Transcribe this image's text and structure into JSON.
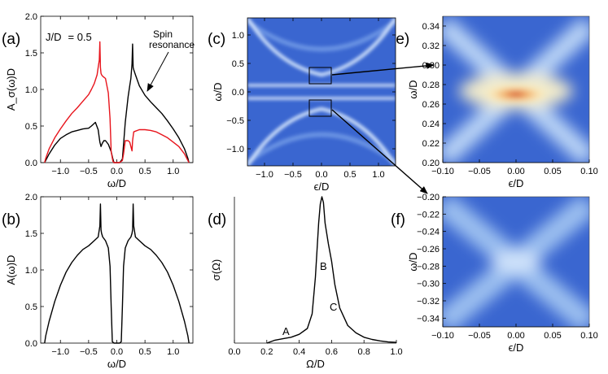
{
  "panel_labels": {
    "a": "(a)",
    "b": "(b)",
    "c": "(c)",
    "d": "(d)",
    "e": "(e)",
    "f": "(f)"
  },
  "colors": {
    "black": "#000000",
    "red": "#e8141c",
    "map_bg": "#3a66d0",
    "map_ridge": "#eaf4ff",
    "map_hot": "#c8301c"
  },
  "chart_data": [
    {
      "id": "a",
      "type": "line",
      "xlabel": "ω/D",
      "ylabel": "A_σ(ω)D",
      "xlim": [
        -1.35,
        1.35
      ],
      "ylim": [
        0,
        2.0
      ],
      "xticks": [
        -1.0,
        -0.5,
        0.0,
        0.5,
        1.0
      ],
      "xtick_labels": [
        "−1.0",
        "−0.5",
        "0.0",
        "0.5",
        "1.0"
      ],
      "yticks": [
        0.0,
        0.5,
        1.0,
        1.5,
        2.0
      ],
      "ytick_labels": [
        "0.0",
        "0.5",
        "1.0",
        "1.5",
        "2.0"
      ],
      "annotations": {
        "param": "J/D",
        "param_value": "= 0.5",
        "note_line1": "Spin",
        "note_line2": "resonance"
      },
      "series": [
        {
          "color": "#000000",
          "x": [
            -1.28,
            -1.26,
            -1.2,
            -1.1,
            -1.0,
            -0.9,
            -0.8,
            -0.7,
            -0.6,
            -0.5,
            -0.45,
            -0.38,
            -0.33,
            -0.3,
            -0.28,
            -0.26,
            -0.23,
            -0.2,
            -0.15,
            -0.1,
            -0.07,
            -0.05,
            -0.02,
            0.0,
            0.02,
            0.05,
            0.1,
            0.15,
            0.2,
            0.23,
            0.25,
            0.27,
            0.28,
            0.29,
            0.3,
            0.33,
            0.4,
            0.5,
            0.6,
            0.7,
            0.8,
            0.9,
            1.0,
            1.1,
            1.2,
            1.26,
            1.28
          ],
          "y": [
            0.0,
            0.03,
            0.12,
            0.24,
            0.33,
            0.38,
            0.42,
            0.44,
            0.46,
            0.47,
            0.5,
            0.55,
            0.45,
            0.28,
            0.22,
            0.26,
            0.3,
            0.3,
            0.25,
            0.15,
            0.05,
            0.0,
            0.0,
            0.0,
            0.0,
            0.0,
            0.05,
            0.55,
            0.9,
            1.05,
            1.15,
            1.35,
            1.62,
            1.3,
            1.27,
            1.2,
            1.05,
            0.92,
            0.83,
            0.75,
            0.67,
            0.57,
            0.46,
            0.34,
            0.19,
            0.06,
            0.0
          ]
        },
        {
          "color": "#e8141c",
          "x": [
            -1.28,
            -1.26,
            -1.2,
            -1.1,
            -1.0,
            -0.9,
            -0.8,
            -0.7,
            -0.6,
            -0.5,
            -0.45,
            -0.4,
            -0.35,
            -0.33,
            -0.31,
            -0.3,
            -0.29,
            -0.28,
            -0.27,
            -0.25,
            -0.2,
            -0.15,
            -0.12,
            -0.1,
            -0.07,
            -0.05,
            -0.02,
            0.0,
            0.02,
            0.05,
            0.1,
            0.12,
            0.15,
            0.2,
            0.23,
            0.25,
            0.27,
            0.28,
            0.3,
            0.33,
            0.4,
            0.5,
            0.6,
            0.7,
            0.8,
            0.9,
            1.0,
            1.1,
            1.2,
            1.26,
            1.28
          ],
          "y": [
            0.0,
            0.06,
            0.19,
            0.34,
            0.46,
            0.57,
            0.67,
            0.75,
            0.84,
            0.93,
            1.0,
            1.08,
            1.2,
            1.3,
            1.4,
            1.65,
            1.3,
            1.22,
            1.2,
            1.18,
            1.15,
            0.95,
            0.6,
            0.15,
            0.02,
            0.0,
            0.0,
            0.0,
            0.0,
            0.0,
            0.03,
            0.12,
            0.3,
            0.3,
            0.28,
            0.22,
            0.16,
            0.3,
            0.42,
            0.43,
            0.45,
            0.45,
            0.44,
            0.42,
            0.38,
            0.34,
            0.28,
            0.22,
            0.12,
            0.03,
            0.0
          ]
        }
      ]
    },
    {
      "id": "b",
      "type": "line",
      "xlabel": "ω/D",
      "ylabel": "A(ω)D",
      "xlim": [
        -1.35,
        1.35
      ],
      "ylim": [
        0,
        2.0
      ],
      "xticks": [
        -1.0,
        -0.5,
        0.0,
        0.5,
        1.0
      ],
      "xtick_labels": [
        "−1.0",
        "−0.5",
        "0.0",
        "0.5",
        "1.0"
      ],
      "yticks": [
        0.0,
        0.5,
        1.0,
        1.5,
        2.0
      ],
      "ytick_labels": [
        "0.0",
        "0.5",
        "1.0",
        "1.5",
        "2.0"
      ],
      "series": [
        {
          "color": "#000000",
          "x": [
            -1.28,
            -1.26,
            -1.2,
            -1.1,
            -1.0,
            -0.9,
            -0.8,
            -0.7,
            -0.6,
            -0.5,
            -0.4,
            -0.33,
            -0.3,
            -0.29,
            -0.28,
            -0.27,
            -0.25,
            -0.2,
            -0.15,
            -0.12,
            -0.1,
            -0.08,
            -0.05,
            -0.02,
            0.0,
            0.02,
            0.05,
            0.08,
            0.1,
            0.12,
            0.15,
            0.2,
            0.25,
            0.27,
            0.28,
            0.29,
            0.3,
            0.33,
            0.4,
            0.5,
            0.6,
            0.7,
            0.8,
            0.9,
            1.0,
            1.1,
            1.2,
            1.26,
            1.28
          ],
          "y": [
            0.0,
            0.1,
            0.3,
            0.57,
            0.79,
            0.97,
            1.1,
            1.2,
            1.28,
            1.33,
            1.4,
            1.45,
            1.6,
            1.9,
            1.55,
            1.5,
            1.45,
            1.4,
            1.3,
            1.05,
            0.5,
            0.02,
            0.0,
            0.0,
            0.0,
            0.0,
            0.0,
            0.02,
            0.5,
            1.05,
            1.3,
            1.4,
            1.45,
            1.5,
            1.55,
            1.9,
            1.6,
            1.45,
            1.4,
            1.33,
            1.28,
            1.2,
            1.1,
            0.97,
            0.79,
            0.57,
            0.3,
            0.1,
            0.0
          ]
        }
      ]
    },
    {
      "id": "c",
      "type": "heatmap",
      "xlabel": "ϵ/D",
      "ylabel": "ω/D",
      "xlim": [
        -1.3,
        1.3
      ],
      "ylim": [
        -1.3,
        1.3
      ],
      "xticks": [
        -1.0,
        -0.5,
        0.0,
        0.5,
        1.0
      ],
      "xtick_labels": [
        "−1.0",
        "−0.5",
        "0.0",
        "0.5",
        "1.0"
      ],
      "yticks": [
        -1.0,
        -0.5,
        0.0,
        0.5,
        1.0
      ],
      "ytick_labels": [
        "−1.0",
        "−0.5",
        "0.0",
        "0.5",
        "1.0"
      ],
      "zoom_boxes": [
        {
          "x": [
            -0.15,
            0.15
          ],
          "y": [
            0.2,
            0.34
          ]
        },
        {
          "x": [
            -0.15,
            0.15
          ],
          "y": [
            -0.34,
            -0.2
          ]
        }
      ]
    },
    {
      "id": "d",
      "type": "line",
      "xlabel": "Ω/D",
      "ylabel": "σ(Ω)",
      "xlim": [
        0.0,
        1.0
      ],
      "ylim": [
        0,
        1.0
      ],
      "xticks": [
        0.0,
        0.2,
        0.4,
        0.6,
        0.8,
        1.0
      ],
      "xtick_labels": [
        "0.0",
        "0.2",
        "0.4",
        "0.6",
        "0.8",
        "1.0"
      ],
      "annotations": {
        "A": "A",
        "B": "B",
        "C": "C"
      },
      "series": [
        {
          "color": "#000000",
          "x": [
            0.2,
            0.25,
            0.3,
            0.35,
            0.4,
            0.45,
            0.48,
            0.5,
            0.52,
            0.53,
            0.54,
            0.55,
            0.56,
            0.58,
            0.6,
            0.62,
            0.65,
            0.7,
            0.75,
            0.8,
            0.85,
            0.9,
            0.95,
            1.0
          ],
          "y": [
            0.0,
            0.02,
            0.03,
            0.04,
            0.06,
            0.1,
            0.2,
            0.45,
            0.82,
            0.95,
            1.0,
            0.96,
            0.82,
            0.68,
            0.56,
            0.4,
            0.24,
            0.12,
            0.07,
            0.04,
            0.025,
            0.015,
            0.008,
            0.005
          ]
        }
      ]
    },
    {
      "id": "e",
      "type": "heatmap",
      "xlabel": "ϵ/D",
      "ylabel": "ω/D",
      "xlim": [
        -0.1,
        0.1
      ],
      "ylim": [
        0.2,
        0.35
      ],
      "xticks": [
        -0.1,
        -0.05,
        0.0,
        0.05,
        0.1
      ],
      "xtick_labels": [
        "−0.10",
        "−0.05",
        "0.00",
        "0.05",
        "0.10"
      ],
      "yticks": [
        0.2,
        0.22,
        0.24,
        0.26,
        0.28,
        0.3,
        0.32,
        0.34
      ],
      "ytick_labels": [
        "0.20",
        "0.22",
        "0.24",
        "0.26",
        "0.28",
        "0.30",
        "0.32",
        "0.34"
      ]
    },
    {
      "id": "f",
      "type": "heatmap",
      "xlabel": "ϵ/D",
      "ylabel": "ω/D",
      "xlim": [
        -0.1,
        0.1
      ],
      "ylim": [
        -0.35,
        -0.2
      ],
      "xticks": [
        -0.1,
        -0.05,
        0.0,
        0.05,
        0.1
      ],
      "xtick_labels": [
        "−0.10",
        "−0.05",
        "0.00",
        "0.05",
        "0.10"
      ],
      "yticks": [
        -0.34,
        -0.32,
        -0.3,
        -0.28,
        -0.26,
        -0.24,
        -0.22,
        -0.2
      ],
      "ytick_labels": [
        "−0.34",
        "−0.32",
        "−0.30",
        "−0.28",
        "−0.26",
        "−0.24",
        "−0.22",
        "−0.20"
      ]
    }
  ]
}
